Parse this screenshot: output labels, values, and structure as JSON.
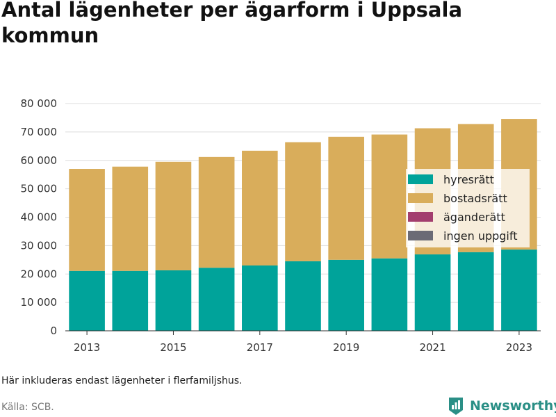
{
  "title": "Antal lägenheter per ägarform i Uppsala kommun",
  "note": "Här inkluderas endast lägenheter i flerfamiljshus.",
  "source": "Källa: SCB.",
  "brand": {
    "name": "Newsworthy",
    "icon": "newsworthy-logo-icon",
    "color": "#2a8f86"
  },
  "chart_data": {
    "type": "bar",
    "stacked": true,
    "categories": [
      "2013",
      "2014",
      "2015",
      "2016",
      "2017",
      "2018",
      "2019",
      "2020",
      "2021",
      "2022",
      "2023"
    ],
    "x_tick_labels": [
      "2013",
      "2015",
      "2017",
      "2019",
      "2021",
      "2023"
    ],
    "series": [
      {
        "name": "hyresrätt",
        "color": "#00a39a",
        "values": [
          21100,
          21100,
          21300,
          22200,
          23000,
          24500,
          25000,
          25500,
          26900,
          27700,
          28600
        ]
      },
      {
        "name": "bostadsrätt",
        "color": "#d9ad5b",
        "values": [
          35900,
          36700,
          38200,
          39000,
          40400,
          41900,
          43300,
          43600,
          44400,
          45100,
          46000
        ]
      },
      {
        "name": "äganderätt",
        "color": "#a33e6e",
        "values": [
          0,
          0,
          0,
          0,
          0,
          0,
          0,
          0,
          0,
          0,
          0
        ]
      },
      {
        "name": "ingen uppgift",
        "color": "#6b6b75",
        "values": [
          0,
          0,
          0,
          0,
          0,
          0,
          0,
          0,
          0,
          0,
          0
        ]
      }
    ],
    "ylim": [
      0,
      80000
    ],
    "y_ticks": [
      0,
      10000,
      20000,
      30000,
      40000,
      50000,
      60000,
      70000,
      80000
    ],
    "y_tick_labels": [
      "0",
      "10 000",
      "20 000",
      "30 000",
      "40 000",
      "50 000",
      "60 000",
      "70 000",
      "80 000"
    ],
    "grid": true,
    "legend_position": "right, inside plot"
  }
}
